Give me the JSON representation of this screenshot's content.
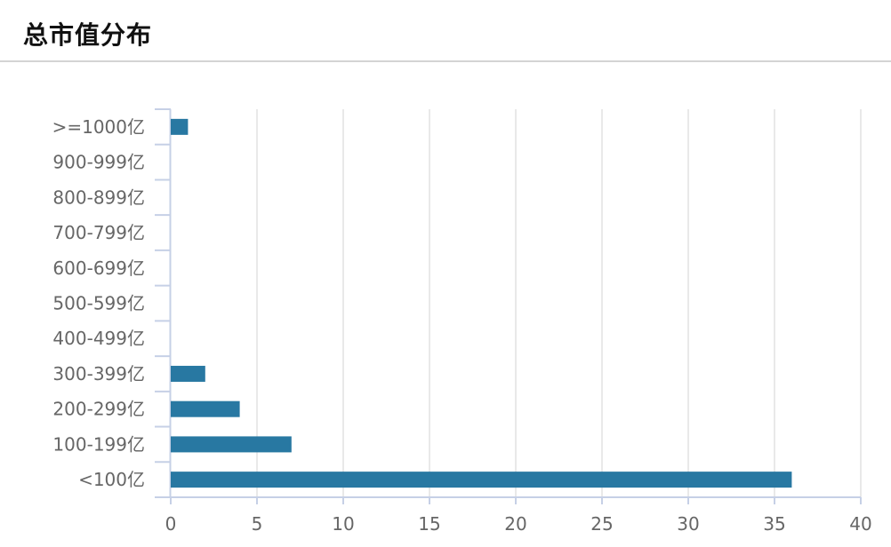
{
  "title": "总市值分布",
  "colors": {
    "bar": "#2878a2",
    "grid": "#e2e2e2",
    "axis": "#c6d0e6",
    "text": "#666666"
  },
  "chart_data": {
    "type": "bar",
    "orientation": "horizontal",
    "categories": [
      ">=1000亿",
      "900-999亿",
      "800-899亿",
      "700-799亿",
      "600-699亿",
      "500-599亿",
      "400-499亿",
      "300-399亿",
      "200-299亿",
      "100-199亿",
      "<100亿"
    ],
    "values": [
      1,
      0,
      0,
      0,
      0,
      0,
      0,
      2,
      4,
      7,
      36
    ],
    "xlim": [
      0,
      40
    ],
    "xticks": [
      0,
      5,
      10,
      15,
      20,
      25,
      30,
      35,
      40
    ],
    "grid": true,
    "legend": "none"
  }
}
